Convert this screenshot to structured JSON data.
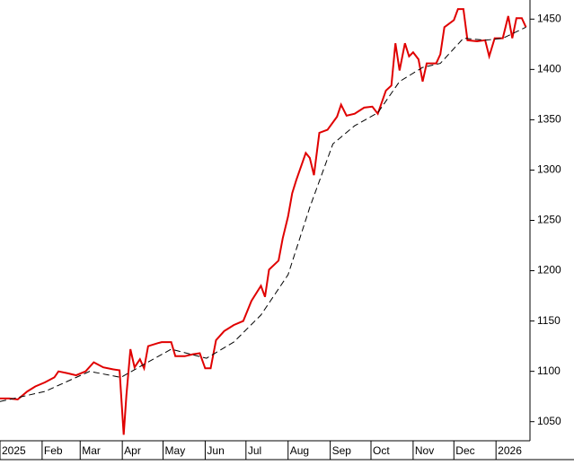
{
  "chart_data": {
    "type": "line",
    "xlim": [
      0,
      390
    ],
    "ylim": [
      1031,
      1469
    ],
    "yticks": [
      1050,
      1100,
      1150,
      1200,
      1250,
      1300,
      1350,
      1400,
      1450
    ],
    "xticks": [
      {
        "value": 0,
        "label": "2025"
      },
      {
        "value": 31,
        "label": "Feb"
      },
      {
        "value": 59,
        "label": "Mar"
      },
      {
        "value": 90,
        "label": "Apr"
      },
      {
        "value": 120,
        "label": "May"
      },
      {
        "value": 151,
        "label": "Jun"
      },
      {
        "value": 181,
        "label": "Jul"
      },
      {
        "value": 212,
        "label": "Aug"
      },
      {
        "value": 243,
        "label": "Sep"
      },
      {
        "value": 273,
        "label": "Oct"
      },
      {
        "value": 304,
        "label": "Nov"
      },
      {
        "value": 334,
        "label": "Dec"
      },
      {
        "value": 365,
        "label": "2026"
      }
    ],
    "series": [
      {
        "color": "#e00000",
        "dashed": false,
        "x": [
          0,
          7,
          13,
          20,
          26,
          33,
          40,
          43,
          50,
          56,
          63,
          69,
          76,
          83,
          88,
          91,
          93,
          96,
          99,
          103,
          106,
          109,
          116,
          119,
          126,
          129,
          136,
          142,
          147,
          151,
          155,
          159,
          165,
          172,
          179,
          185,
          192,
          195,
          198,
          205,
          208,
          212,
          215,
          218,
          225,
          228,
          231,
          235,
          241,
          248,
          251,
          255,
          261,
          268,
          274,
          278,
          284,
          288,
          291,
          294,
          298,
          301,
          304,
          308,
          311,
          314,
          321,
          324,
          327,
          334,
          337,
          341,
          344,
          351,
          357,
          360,
          364,
          370,
          374,
          377,
          380,
          384,
          387
        ],
        "values": [
          1073,
          1073,
          1072,
          1080,
          1085,
          1089,
          1094,
          1100,
          1098,
          1096,
          1100,
          1109,
          1104,
          1102,
          1101,
          1037,
          1076,
          1122,
          1104,
          1112,
          1103,
          1125,
          1128,
          1129,
          1129,
          1115,
          1115,
          1117,
          1118,
          1103,
          1103,
          1131,
          1140,
          1146,
          1150,
          1170,
          1185,
          1174,
          1201,
          1210,
          1232,
          1254,
          1277,
          1290,
          1317,
          1312,
          1295,
          1337,
          1340,
          1353,
          1365,
          1354,
          1356,
          1362,
          1363,
          1356,
          1379,
          1384,
          1426,
          1399,
          1426,
          1413,
          1417,
          1410,
          1388,
          1406,
          1406,
          1415,
          1442,
          1449,
          1460,
          1460,
          1429,
          1428,
          1429,
          1413,
          1431,
          1431,
          1453,
          1431,
          1451,
          1451,
          1442
        ]
      },
      {
        "color": "#000000",
        "dashed": true,
        "x": [
          0,
          33,
          66,
          89,
          106,
          126,
          152,
          172,
          192,
          212,
          228,
          245,
          261,
          278,
          294,
          311,
          324,
          341,
          357,
          370,
          387
        ],
        "values": [
          1070,
          1080,
          1100,
          1094,
          1107,
          1122,
          1113,
          1129,
          1156,
          1196,
          1263,
          1326,
          1344,
          1357,
          1388,
          1402,
          1406,
          1431,
          1429,
          1431,
          1442
        ]
      }
    ]
  }
}
